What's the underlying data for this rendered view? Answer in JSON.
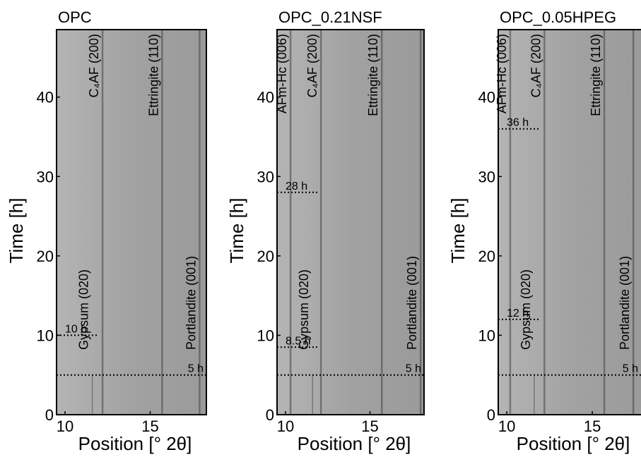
{
  "chart_data": [
    {
      "type": "image",
      "title": "OPC",
      "xlabel": "Position [° 2θ]",
      "ylabel": "Time [h]",
      "xlim": [
        9.5,
        18.3
      ],
      "ylim": [
        0,
        48.5
      ],
      "xticks": [
        10,
        15
      ],
      "yticks": [
        0,
        10,
        20,
        30,
        40
      ],
      "peaks": [
        {
          "label": "Gypsum (020)",
          "x": 11.6
        },
        {
          "label": "C₄AF (200)",
          "x": 12.2
        },
        {
          "label": "Ettringite (110)",
          "x": 15.7
        },
        {
          "label": "Portlandite (001)",
          "x": 17.9
        }
      ],
      "events": [
        {
          "label": "10 h",
          "y": 10
        },
        {
          "label": "5 h",
          "y": 5
        }
      ]
    },
    {
      "type": "image",
      "title": "OPC_0.21NSF",
      "xlabel": "Position [° 2θ]",
      "ylabel": "Time [h]",
      "xlim": [
        9.5,
        18.2
      ],
      "ylim": [
        0,
        48.5
      ],
      "xticks": [
        10,
        15
      ],
      "yticks": [
        0,
        10,
        20,
        30,
        40
      ],
      "peaks": [
        {
          "label": "AFm-Hc (006)",
          "x": 10.3
        },
        {
          "label": "Gypsum (020)",
          "x": 11.6
        },
        {
          "label": "C₄AF (200)",
          "x": 12.1
        },
        {
          "label": "Ettringite (110)",
          "x": 15.7
        },
        {
          "label": "Portlandite (001)",
          "x": 18.0
        }
      ],
      "events": [
        {
          "label": "28 h",
          "y": 28
        },
        {
          "label": "8.5 h",
          "y": 8.5
        },
        {
          "label": "5 h",
          "y": 5
        }
      ]
    },
    {
      "type": "image",
      "title": "OPC_0.05HPEG",
      "xlabel": "Position [° 2θ]",
      "ylabel": "Time [h]",
      "xlim": [
        9.5,
        18.3
      ],
      "ylim": [
        0,
        48.5
      ],
      "xticks": [
        10,
        15
      ],
      "yticks": [
        0,
        10,
        20,
        30,
        40
      ],
      "peaks": [
        {
          "label": "AFm-Hc (006)",
          "x": 10.2
        },
        {
          "label": "Gypsum (020)",
          "x": 11.6
        },
        {
          "label": "C₄AF (200)",
          "x": 12.2
        },
        {
          "label": "Ettringite (110)",
          "x": 15.7
        },
        {
          "label": "Portlandite (001)",
          "x": 17.4
        }
      ],
      "events": [
        {
          "label": "36 h",
          "y": 36
        },
        {
          "label": "12 h",
          "y": 12
        },
        {
          "label": "5 h",
          "y": 5
        }
      ]
    }
  ]
}
